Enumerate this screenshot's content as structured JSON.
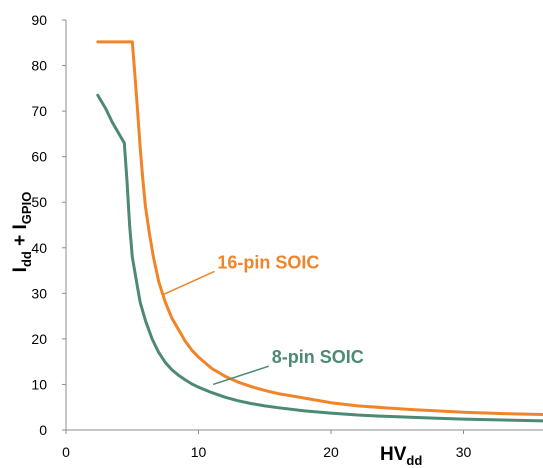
{
  "chart_data": {
    "type": "line",
    "title": "",
    "xlabel": {
      "main": "HV",
      "sub": "dd"
    },
    "ylabel": {
      "main1": "I",
      "sub1": "dd",
      "mid": " + I",
      "sub2": "GPIO"
    },
    "xlim": [
      0,
      36
    ],
    "ylim": [
      0,
      90
    ],
    "xticks": [
      "0",
      "10",
      "20",
      "30"
    ],
    "yticks": [
      "0",
      "10",
      "20",
      "30",
      "40",
      "50",
      "60",
      "70",
      "80",
      "90"
    ],
    "grid": false,
    "legend": "inline-labels",
    "series": [
      {
        "name": "16-pin SOIC",
        "color": "#F08427",
        "points": [
          [
            2.4,
            85.2
          ],
          [
            5.0,
            85.2
          ],
          [
            5.2,
            78
          ],
          [
            5.4,
            70
          ],
          [
            5.6,
            62
          ],
          [
            5.8,
            55
          ],
          [
            6.0,
            49
          ],
          [
            6.3,
            43
          ],
          [
            6.6,
            38
          ],
          [
            7.0,
            32.5
          ],
          [
            7.5,
            28
          ],
          [
            8.0,
            24.5
          ],
          [
            8.5,
            22
          ],
          [
            9.0,
            19.5
          ],
          [
            9.5,
            17.5
          ],
          [
            10.0,
            16
          ],
          [
            11.0,
            13.5
          ],
          [
            12.0,
            11.8
          ],
          [
            13.0,
            10.5
          ],
          [
            14.0,
            9.5
          ],
          [
            15.0,
            8.7
          ],
          [
            16.0,
            8.0
          ],
          [
            17.0,
            7.5
          ],
          [
            18.0,
            7.0
          ],
          [
            20.0,
            6.0
          ],
          [
            22.0,
            5.3
          ],
          [
            24.0,
            4.9
          ],
          [
            26.0,
            4.5
          ],
          [
            28.0,
            4.2
          ],
          [
            30.0,
            3.9
          ],
          [
            33.0,
            3.6
          ],
          [
            36.0,
            3.4
          ]
        ]
      },
      {
        "name": "8-pin SOIC",
        "color": "#4E8A73",
        "points": [
          [
            2.4,
            73.5
          ],
          [
            3.0,
            70.5
          ],
          [
            3.5,
            67.5
          ],
          [
            4.0,
            65
          ],
          [
            4.4,
            63
          ],
          [
            4.6,
            55
          ],
          [
            4.8,
            45
          ],
          [
            5.0,
            38
          ],
          [
            5.3,
            33
          ],
          [
            5.6,
            28
          ],
          [
            6.0,
            24
          ],
          [
            6.5,
            20
          ],
          [
            7.0,
            17
          ],
          [
            7.5,
            14.8
          ],
          [
            8.0,
            13.2
          ],
          [
            8.5,
            12
          ],
          [
            9.0,
            11
          ],
          [
            9.5,
            10.1
          ],
          [
            10.0,
            9.4
          ],
          [
            11.0,
            8.2
          ],
          [
            12.0,
            7.2
          ],
          [
            13.0,
            6.4
          ],
          [
            14.0,
            5.8
          ],
          [
            15.0,
            5.3
          ],
          [
            16.0,
            4.9
          ],
          [
            18.0,
            4.2
          ],
          [
            20.0,
            3.7
          ],
          [
            22.0,
            3.3
          ],
          [
            24.0,
            3.0
          ],
          [
            26.0,
            2.8
          ],
          [
            28.0,
            2.6
          ],
          [
            30.0,
            2.4
          ],
          [
            33.0,
            2.2
          ],
          [
            36.0,
            2.0
          ]
        ]
      }
    ],
    "annotations": [
      {
        "text": "16-pin SOIC",
        "series": 0,
        "from": [
          11.2,
          34.8
        ],
        "to": [
          7.4,
          29.8
        ]
      },
      {
        "text": "8-pin SOIC",
        "series": 1,
        "from": [
          15.3,
          14.0
        ],
        "to": [
          11.1,
          10.0
        ]
      }
    ]
  }
}
